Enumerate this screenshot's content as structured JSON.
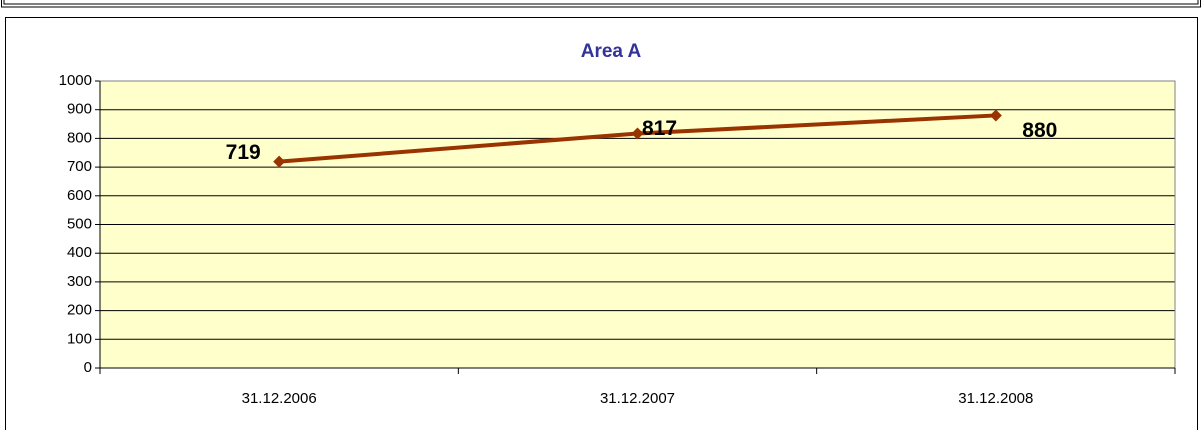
{
  "chart_data": {
    "type": "line",
    "title": "Area A",
    "categories": [
      "31.12.2006",
      "31.12.2007",
      "31.12.2008"
    ],
    "series": [
      {
        "name": "Area A",
        "color": "#993300",
        "values": [
          719,
          817,
          880
        ]
      }
    ],
    "ylim": [
      0,
      1000
    ],
    "yticks": [
      0,
      100,
      200,
      300,
      400,
      500,
      600,
      700,
      800,
      900,
      1000
    ],
    "grid": true
  }
}
